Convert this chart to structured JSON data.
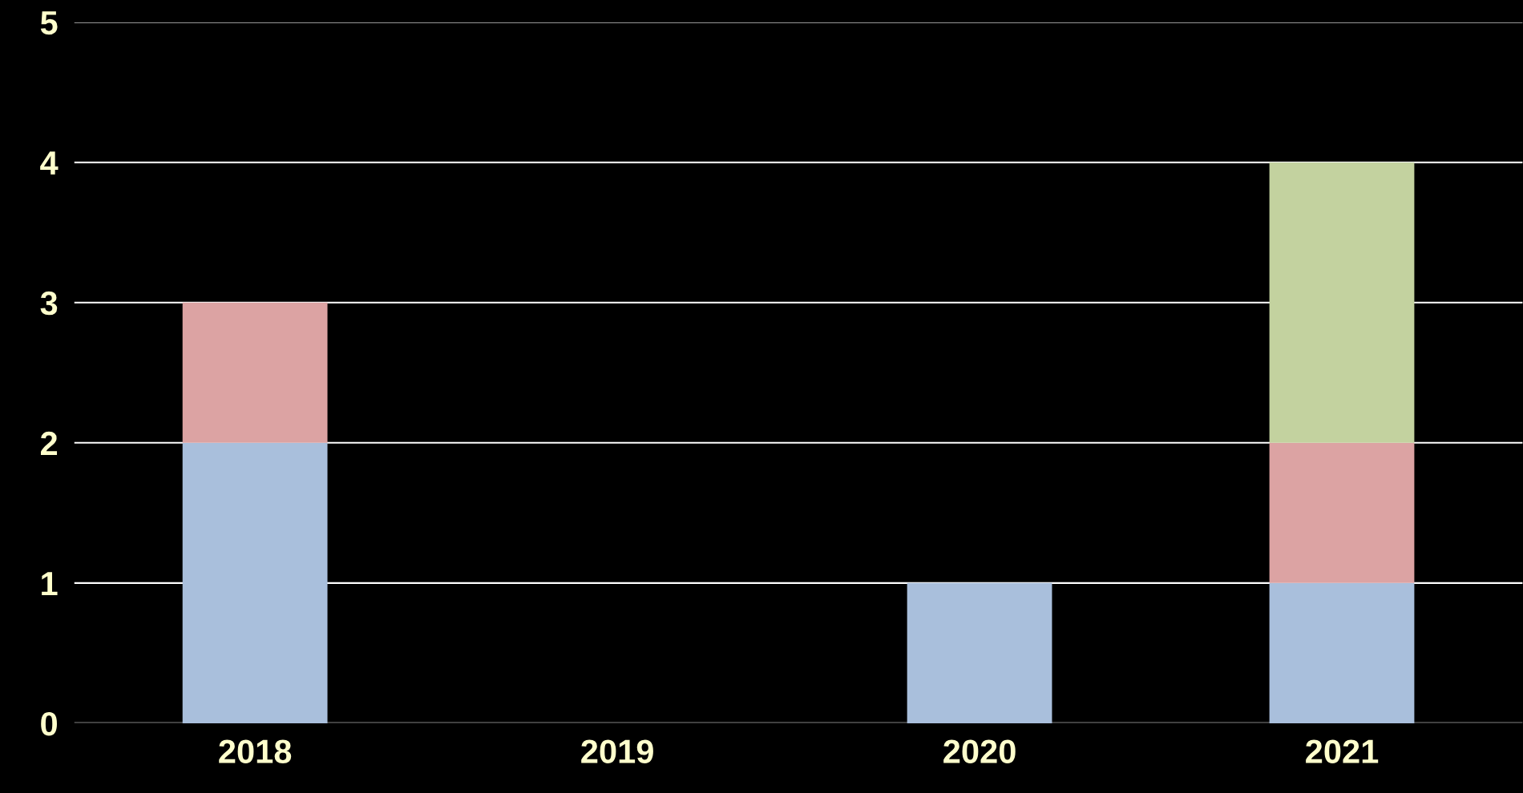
{
  "chart_data": {
    "type": "bar",
    "stacked": true,
    "categories": [
      "2018",
      "2019",
      "2020",
      "2021"
    ],
    "series": [
      {
        "color": "#a9bfdc",
        "values": [
          2,
          null,
          1,
          1
        ]
      },
      {
        "color": "#dca3a3",
        "values": [
          1,
          null,
          null,
          1
        ]
      },
      {
        "color": "#c3d29f",
        "values": [
          null,
          null,
          null,
          2
        ]
      }
    ],
    "ylim": [
      0,
      5
    ],
    "yticks": [
      0,
      1,
      2,
      3,
      4,
      5
    ],
    "grid": "y",
    "legend": false
  }
}
